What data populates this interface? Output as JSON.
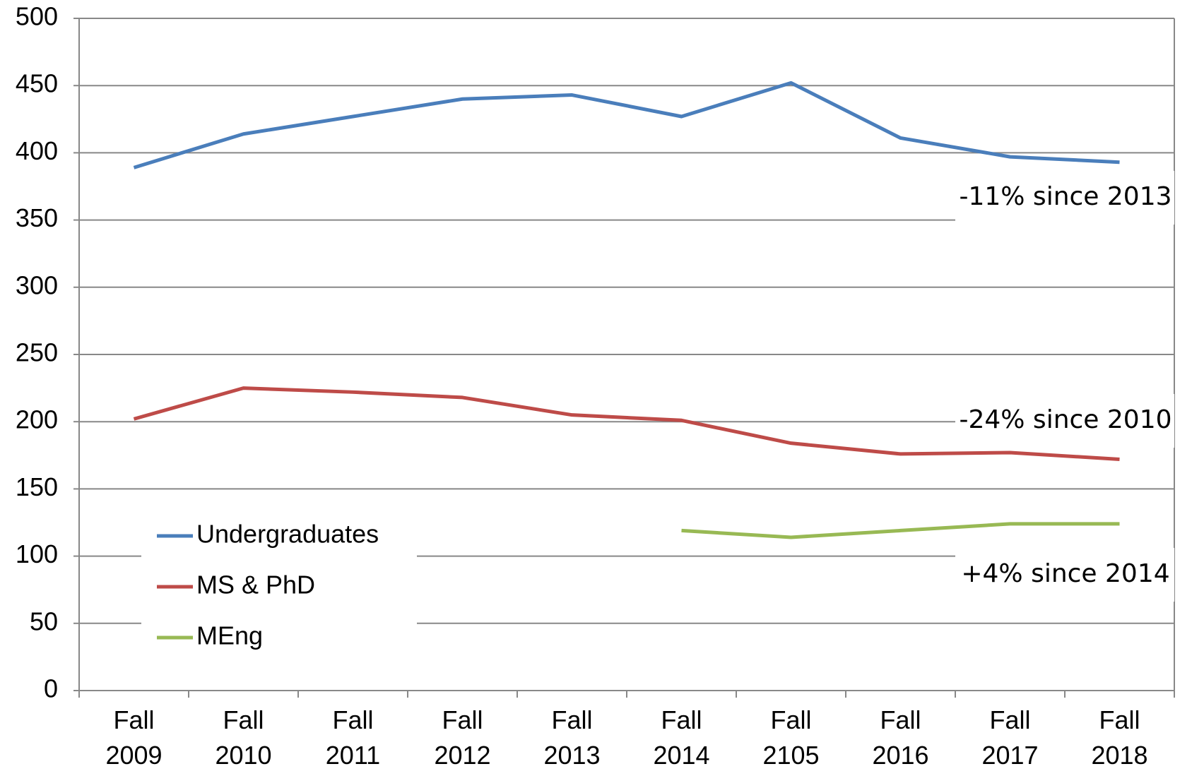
{
  "chart_data": {
    "type": "line",
    "categories": [
      "Fall 2009",
      "Fall 2010",
      "Fall 2011",
      "Fall 2012",
      "Fall 2013",
      "Fall 2014",
      "Fall 2105",
      "Fall 2016",
      "Fall 2017",
      "Fall 2018"
    ],
    "series": [
      {
        "name": "Undergraduates",
        "color": "#4a7ebb",
        "values": [
          389,
          414,
          427,
          440,
          443,
          427,
          452,
          411,
          397,
          393
        ]
      },
      {
        "name": "MS & PhD",
        "color": "#be4b48",
        "values": [
          202,
          225,
          222,
          218,
          205,
          201,
          184,
          176,
          177,
          172
        ]
      },
      {
        "name": "MEng",
        "color": "#98b954",
        "values": [
          null,
          null,
          null,
          null,
          null,
          119,
          114,
          119,
          124,
          124
        ]
      }
    ],
    "ylim": [
      0,
      500
    ],
    "yticks": [
      0,
      50,
      100,
      150,
      200,
      250,
      300,
      350,
      400,
      450,
      500
    ],
    "grid": true,
    "annotations": [
      "-11% since 2013",
      "-24% since 2010",
      "+4% since 2014"
    ]
  }
}
